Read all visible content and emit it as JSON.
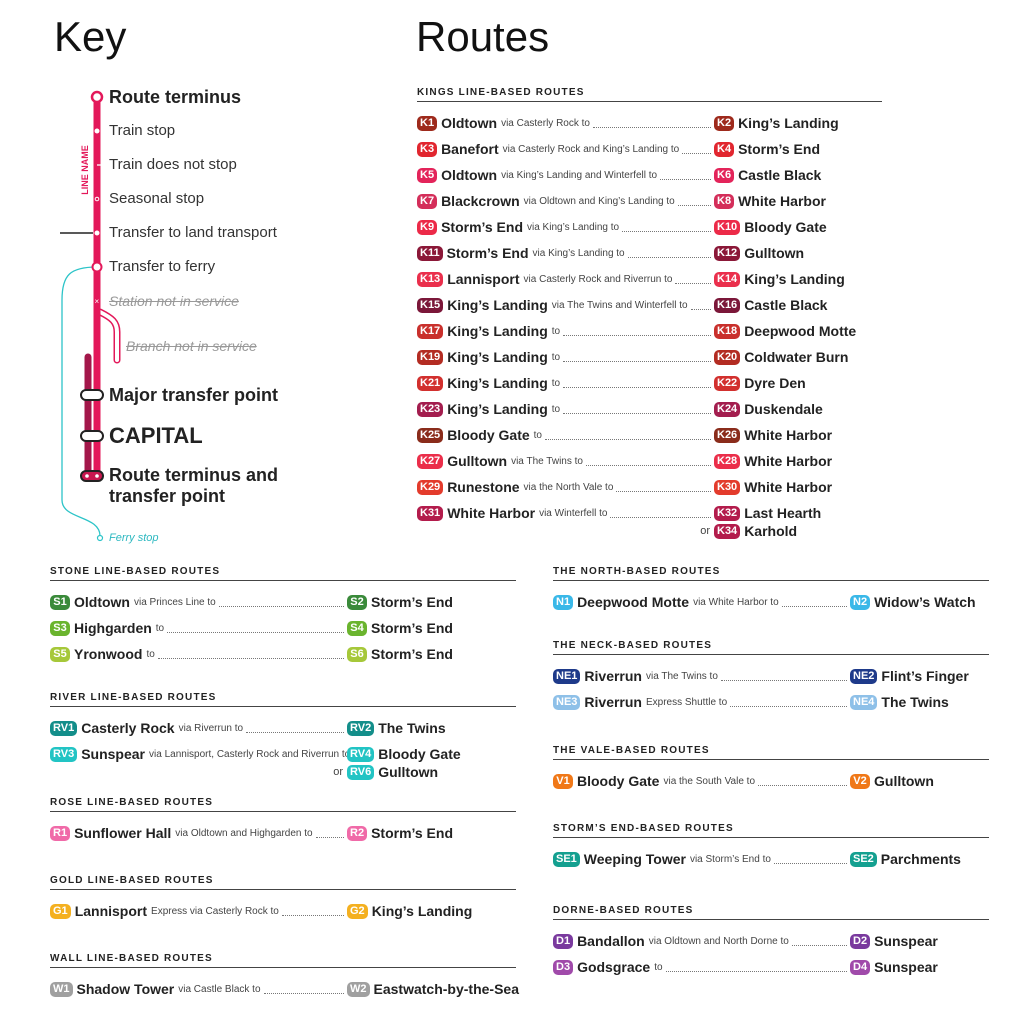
{
  "key": {
    "title": "Key",
    "line_name": "LINE NAME",
    "items": {
      "route_terminus": "Route terminus",
      "train_stop": "Train stop",
      "train_does_not_stop": "Train does not stop",
      "seasonal_stop": "Seasonal stop",
      "transfer_land": "Transfer to land transport",
      "transfer_ferry": "Transfer to ferry",
      "station_not_in_service": "Station not in service",
      "branch_not_in_service": "Branch not in service",
      "major_transfer": "Major transfer point",
      "capital": "CAPITAL",
      "terminus_transfer_1": "Route terminus and",
      "terminus_transfer_2": "transfer point",
      "ferry_stop": "Ferry stop"
    },
    "colors": {
      "line": "#e3185a",
      "dark_line": "#a3174a",
      "ferry": "#2cc4c8"
    }
  },
  "routes_title": "Routes",
  "or_label": "or",
  "sections": [
    {
      "id": "kings",
      "heading": "KINGS LINE-BASED ROUTES",
      "rows": [
        {
          "from": {
            "code": "K1",
            "color": "#9e2a1c",
            "name": "Oldtown"
          },
          "via": "via Casterly Rock to",
          "to": [
            {
              "code": "K2",
              "color": "#9e2a1c",
              "name": "King’s Landing"
            }
          ]
        },
        {
          "from": {
            "code": "K3",
            "color": "#e1262f",
            "name": "Banefort"
          },
          "via": "via Casterly Rock and King’s Landing to",
          "to": [
            {
              "code": "K4",
              "color": "#e1262f",
              "name": "Storm’s End"
            }
          ]
        },
        {
          "from": {
            "code": "K5",
            "color": "#e3245a",
            "name": "Oldtown"
          },
          "via": "via King’s Landing and Winterfell to",
          "to": [
            {
              "code": "K6",
              "color": "#e3245a",
              "name": "Castle Black"
            }
          ]
        },
        {
          "from": {
            "code": "K7",
            "color": "#d42e5a",
            "name": "Blackcrown"
          },
          "via": "via Oldtown and King’s Landing to",
          "to": [
            {
              "code": "K8",
              "color": "#d42e5a",
              "name": "White Harbor"
            }
          ]
        },
        {
          "from": {
            "code": "K9",
            "color": "#ec2a48",
            "name": "Storm’s End"
          },
          "via": "via King’s Landing to",
          "to": [
            {
              "code": "K10",
              "color": "#ec2a48",
              "name": "Bloody Gate"
            }
          ]
        },
        {
          "from": {
            "code": "K11",
            "color": "#8b1838",
            "name": "Storm’s End"
          },
          "via": "via King’s Landing to",
          "to": [
            {
              "code": "K12",
              "color": "#8b1838",
              "name": "Gulltown"
            }
          ]
        },
        {
          "from": {
            "code": "K13",
            "color": "#ea2f4c",
            "name": "Lannisport"
          },
          "via": "via Casterly Rock and Riverrun to",
          "to": [
            {
              "code": "K14",
              "color": "#ea2f4c",
              "name": "King’s Landing"
            }
          ]
        },
        {
          "from": {
            "code": "K15",
            "color": "#7b1739",
            "name": "King’s Landing"
          },
          "via": "via The Twins and Winterfell to",
          "to": [
            {
              "code": "K16",
              "color": "#7b1739",
              "name": "Castle Black"
            }
          ]
        },
        {
          "from": {
            "code": "K17",
            "color": "#c9302c",
            "name": "King’s Landing"
          },
          "via": "to",
          "to": [
            {
              "code": "K18",
              "color": "#c9302c",
              "name": "Deepwood Motte"
            }
          ]
        },
        {
          "from": {
            "code": "K19",
            "color": "#b32c22",
            "name": "King’s Landing"
          },
          "via": "to",
          "to": [
            {
              "code": "K20",
              "color": "#b32c22",
              "name": "Coldwater Burn"
            }
          ]
        },
        {
          "from": {
            "code": "K21",
            "color": "#d2302e",
            "name": "King’s Landing"
          },
          "via": "to",
          "to": [
            {
              "code": "K22",
              "color": "#d2302e",
              "name": "Dyre Den"
            }
          ]
        },
        {
          "from": {
            "code": "K23",
            "color": "#a31d4e",
            "name": "King’s Landing"
          },
          "via": "to",
          "to": [
            {
              "code": "K24",
              "color": "#a31d4e",
              "name": "Duskendale"
            }
          ]
        },
        {
          "from": {
            "code": "K25",
            "color": "#8a2c1b",
            "name": "Bloody Gate"
          },
          "via": "to",
          "to": [
            {
              "code": "K26",
              "color": "#8a2c1b",
              "name": "White Harbor"
            }
          ]
        },
        {
          "from": {
            "code": "K27",
            "color": "#eb2e4a",
            "name": "Gulltown"
          },
          "via": "via The Twins to",
          "to": [
            {
              "code": "K28",
              "color": "#eb2e4a",
              "name": "White Harbor"
            }
          ]
        },
        {
          "from": {
            "code": "K29",
            "color": "#e33b2c",
            "name": "Runestone"
          },
          "via": "via the North Vale to",
          "to": [
            {
              "code": "K30",
              "color": "#e33b2c",
              "name": "White Harbor"
            }
          ]
        },
        {
          "from": {
            "code": "K31",
            "color": "#b31c4c",
            "name": "White Harbor"
          },
          "via": "via Winterfell to",
          "to": [
            {
              "code": "K32",
              "color": "#b31c4c",
              "name": "Last Hearth"
            },
            {
              "code": "K34",
              "color": "#b31c4c",
              "name": "Karhold"
            }
          ]
        }
      ]
    },
    {
      "id": "stone",
      "heading": "STONE LINE-BASED ROUTES",
      "rows": [
        {
          "from": {
            "code": "S1",
            "color": "#3a8a3a",
            "name": "Oldtown"
          },
          "via": "via Princes Line to",
          "to": [
            {
              "code": "S2",
              "color": "#3a8a3a",
              "name": "Storm’s End"
            }
          ]
        },
        {
          "from": {
            "code": "S3",
            "color": "#6ab42e",
            "name": "Highgarden"
          },
          "via": "to",
          "to": [
            {
              "code": "S4",
              "color": "#6ab42e",
              "name": "Storm’s End"
            }
          ]
        },
        {
          "from": {
            "code": "S5",
            "color": "#a6c83a",
            "name": "Yronwood"
          },
          "via": "to",
          "to": [
            {
              "code": "S6",
              "color": "#a6c83a",
              "name": "Storm’s End"
            }
          ]
        }
      ]
    },
    {
      "id": "river",
      "heading": "RIVER LINE-BASED ROUTES",
      "rows": [
        {
          "from": {
            "code": "RV1",
            "color": "#138e8a",
            "name": "Casterly Rock"
          },
          "via": "via Riverrun to",
          "to": [
            {
              "code": "RV2",
              "color": "#138e8a",
              "name": "The Twins"
            }
          ]
        },
        {
          "from": {
            "code": "RV3",
            "color": "#22c4c4",
            "name": "Sunspear"
          },
          "via": "via Lannisport, Casterly Rock and Riverrun to",
          "to": [
            {
              "code": "RV4",
              "color": "#22c4c4",
              "name": "Bloody Gate"
            },
            {
              "code": "RV6",
              "color": "#22c4c4",
              "name": "Gulltown"
            }
          ]
        }
      ]
    },
    {
      "id": "rose",
      "heading": "ROSE LINE-BASED ROUTES",
      "rows": [
        {
          "from": {
            "code": "R1",
            "color": "#f06aa8",
            "name": "Sunflower Hall"
          },
          "via": "via Oldtown and Highgarden to",
          "to": [
            {
              "code": "R2",
              "color": "#f06aa8",
              "name": "Storm’s End"
            }
          ]
        }
      ]
    },
    {
      "id": "gold",
      "heading": "GOLD LINE-BASED ROUTES",
      "rows": [
        {
          "from": {
            "code": "G1",
            "color": "#f4b020",
            "name": "Lannisport"
          },
          "via": "Express via Casterly Rock to",
          "to": [
            {
              "code": "G2",
              "color": "#f4b020",
              "name": "King’s Landing"
            }
          ]
        }
      ]
    },
    {
      "id": "wall",
      "heading": "WALL LINE-BASED ROUTES",
      "rows": [
        {
          "from": {
            "code": "W1",
            "color": "#a0a0a0",
            "name": "Shadow Tower"
          },
          "via": "via Castle Black to",
          "to": [
            {
              "code": "W2",
              "color": "#a0a0a0",
              "name": "Eastwatch-by-the-Sea"
            }
          ]
        }
      ]
    },
    {
      "id": "north",
      "heading": "THE NORTH-BASED ROUTES",
      "rows": [
        {
          "from": {
            "code": "N1",
            "color": "#3ab8e8",
            "name": "Deepwood Motte"
          },
          "via": "via White Harbor to",
          "to": [
            {
              "code": "N2",
              "color": "#3ab8e8",
              "name": "Widow’s Watch"
            }
          ]
        }
      ]
    },
    {
      "id": "neck",
      "heading": "THE NECK-BASED ROUTES",
      "rows": [
        {
          "from": {
            "code": "NE1",
            "color": "#1e3a8a",
            "name": "Riverrun"
          },
          "via": "via The Twins to",
          "to": [
            {
              "code": "NE2",
              "color": "#1e3a8a",
              "name": "Flint’s Finger"
            }
          ]
        },
        {
          "from": {
            "code": "NE3",
            "color": "#8ec0e8",
            "name": "Riverrun"
          },
          "via": "Express Shuttle to",
          "to": [
            {
              "code": "NE4",
              "color": "#8ec0e8",
              "name": "The Twins"
            }
          ]
        }
      ]
    },
    {
      "id": "vale",
      "heading": "THE VALE-BASED ROUTES",
      "rows": [
        {
          "from": {
            "code": "V1",
            "color": "#f07818",
            "name": "Bloody Gate"
          },
          "via": "via the South Vale to",
          "to": [
            {
              "code": "V2",
              "color": "#f07818",
              "name": "Gulltown"
            }
          ]
        }
      ]
    },
    {
      "id": "stormsend",
      "heading": "STORM’S END-BASED ROUTES",
      "rows": [
        {
          "from": {
            "code": "SE1",
            "color": "#14a090",
            "name": "Weeping Tower"
          },
          "via": "via Storm’s End to",
          "to": [
            {
              "code": "SE2",
              "color": "#14a090",
              "name": "Parchments"
            }
          ]
        }
      ]
    },
    {
      "id": "dorne",
      "heading": "DORNE-BASED ROUTES",
      "rows": [
        {
          "from": {
            "code": "D1",
            "color": "#7a3a9e",
            "name": "Bandallon"
          },
          "via": "via Oldtown and North Dorne to",
          "to": [
            {
              "code": "D2",
              "color": "#7a3a9e",
              "name": "Sunspear"
            }
          ]
        },
        {
          "from": {
            "code": "D3",
            "color": "#a04aaa",
            "name": "Godsgrace"
          },
          "via": "to",
          "to": [
            {
              "code": "D4",
              "color": "#a04aaa",
              "name": "Sunspear"
            }
          ]
        }
      ]
    }
  ]
}
